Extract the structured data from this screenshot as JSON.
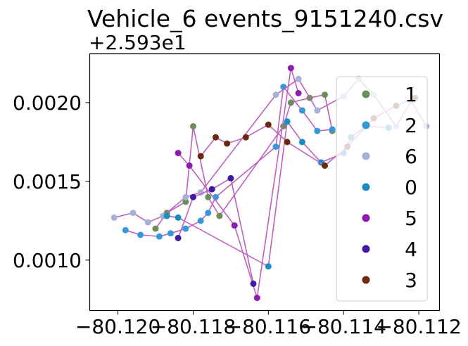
{
  "chart_data": {
    "type": "scatter",
    "title": "Vehicle_6 events_9151240.csv",
    "xlabel": "",
    "ylabel": "",
    "y_offset_label": "+2.593e1",
    "xlim": [
      -80.12075,
      -80.11145
    ],
    "ylim_offset": [
      0.00068,
      0.00231
    ],
    "x_ticks": [
      -80.12,
      -80.118,
      -80.116,
      -80.114,
      -80.112
    ],
    "x_tick_labels": [
      "−80.120",
      "−80.118",
      "−80.116",
      "−80.114",
      "−80.112"
    ],
    "y_ticks_offset": [
      0.001,
      0.0015,
      0.002
    ],
    "y_tick_labels": [
      "0.0010",
      "0.0015",
      "0.0020"
    ],
    "grid": false,
    "legend_position": "right",
    "legend_entries": [
      "1",
      "2",
      "6",
      "0",
      "5",
      "4",
      "3"
    ],
    "line_color": "#c05fc4",
    "series": [
      {
        "name": "1",
        "color": "#6b8e5a",
        "x": [
          -80.119,
          -80.1187,
          -80.1182,
          -80.118,
          -80.1176,
          -80.1173,
          -80.1156,
          -80.1154,
          -80.1149,
          -80.1145,
          -80.1143
        ],
        "y": [
          0.0012,
          0.0013,
          0.00137,
          0.00185,
          0.0014,
          0.00128,
          0.00185,
          0.002,
          0.00203,
          0.00205,
          0.00182
        ]
      },
      {
        "name": "2",
        "color": "#3498db",
        "x": [
          -80.1198,
          -80.1194,
          -80.1189,
          -80.1186,
          -80.1182,
          -80.1178,
          -80.1176,
          -80.1174,
          -80.1158,
          -80.1156,
          -80.1151,
          -80.1147,
          -80.1143
        ],
        "y": [
          0.00119,
          0.00116,
          0.00115,
          0.00117,
          0.0012,
          0.00125,
          0.0013,
          0.0014,
          0.00172,
          0.0021,
          0.00195,
          0.00182,
          0.00183
        ]
      },
      {
        "name": "6",
        "color": "#a7b1d3",
        "x": [
          -80.1201,
          -80.1196,
          -80.1192,
          -80.1188,
          -80.1182,
          -80.1178,
          -80.1158,
          -80.1152,
          -80.1147,
          -80.114,
          -80.1136,
          -80.1132,
          -80.1126,
          -80.1122,
          -80.1118
        ],
        "y": [
          0.00127,
          0.0013,
          0.00124,
          0.00128,
          0.0014,
          0.00143,
          0.00205,
          0.00215,
          0.00195,
          0.00204,
          0.00215,
          0.00205,
          0.00185,
          0.00201,
          0.00185
        ]
      },
      {
        "name": "0",
        "color": "#1a8cc4",
        "x": [
          -80.1187,
          -80.1184,
          -80.116,
          -80.1155,
          -80.1151,
          -80.1146,
          -80.114,
          -80.1138,
          -80.1134,
          -80.1128
        ],
        "y": [
          0.00128,
          0.00127,
          0.00096,
          0.00188,
          0.00175,
          0.00162,
          0.00168,
          0.00178,
          0.00185,
          0.00184
        ]
      },
      {
        "name": "5",
        "color": "#8e1ab0",
        "x": [
          -80.1184,
          -80.1181,
          -80.1169,
          -80.1163,
          -80.1154,
          -80.1152
        ],
        "y": [
          0.00168,
          0.0016,
          0.00122,
          0.00076,
          0.00222,
          0.00206
        ]
      },
      {
        "name": "4",
        "color": "#3f1aa6",
        "x": [
          -80.1184,
          -80.118,
          -80.1175,
          -80.117,
          -80.1164
        ],
        "y": [
          0.00114,
          0.0014,
          0.00145,
          0.00152,
          0.00085
        ]
      },
      {
        "name": "3",
        "color": "#6b2a0b",
        "x": [
          -80.1178,
          -80.1174,
          -80.1171,
          -80.1166,
          -80.116,
          -80.1155,
          -80.1145,
          -80.1139,
          -80.1132,
          -80.1126,
          -80.1121
        ],
        "y": [
          0.00166,
          0.00178,
          0.00174,
          0.00178,
          0.00186,
          0.00175,
          0.0016,
          0.00172,
          0.0019,
          0.00198,
          0.00203
        ]
      }
    ]
  }
}
